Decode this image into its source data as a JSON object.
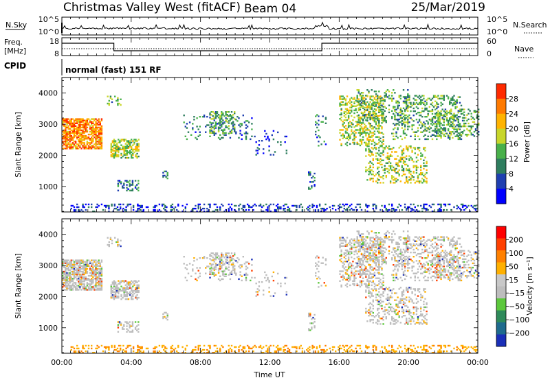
{
  "header": {
    "title": "Christmas Valley West (fitACF)",
    "beam": "Beam 04",
    "date": "25/Mar/2019"
  },
  "panels": {
    "nsky": {
      "label": "N.Sky",
      "ticks": [
        "10^5",
        "10^0"
      ],
      "right_label": "N.Search",
      "right_ticks": [
        "10^5",
        "10^0"
      ]
    },
    "freq": {
      "label_line1": "Freq.",
      "label_line2": "[MHz]",
      "ticks": [
        "18",
        "8"
      ],
      "right_label": "Nave",
      "right_ticks": [
        "60",
        "0"
      ]
    },
    "cpid": {
      "label": "CPID",
      "value": "normal (fast) 151 RF"
    }
  },
  "chart_data": [
    {
      "type": "heatmap",
      "name": "power",
      "ylabel": "Slant Range [km]",
      "yticks": [
        "4000",
        "3000",
        "2000",
        "1000"
      ],
      "colorbar_label": "Power [dB]",
      "colorbar_ticks": [
        "28",
        "24",
        "20",
        "16",
        "12",
        "8",
        "4"
      ],
      "colors": [
        "#0000ff",
        "#1f3fb0",
        "#2e7d5e",
        "#48b04a",
        "#c8d62a",
        "#ffb300",
        "#ff7a00",
        "#ff2a00"
      ]
    },
    {
      "type": "heatmap",
      "name": "velocity",
      "ylabel": "Slant Range [km]",
      "yticks": [
        "4000",
        "3000",
        "2000",
        "1000"
      ],
      "colorbar_label": "Velocity [m s⁻¹]",
      "colorbar_ticks": [
        "200",
        "100",
        "50",
        "15",
        "−15",
        "−50",
        "−100",
        "−200"
      ],
      "colors": [
        "#1a2fb8",
        "#1f6b8e",
        "#2e8a5a",
        "#5cc83c",
        "#bdbdbd",
        "#c8c8c8",
        "#ffb000",
        "#ff8000",
        "#ff4000",
        "#ff0000"
      ]
    }
  ],
  "xaxis": {
    "ticks": [
      "00:00",
      "04:00",
      "08:00",
      "12:00",
      "16:00",
      "20:00",
      "00:00"
    ],
    "label": "Time UT"
  }
}
